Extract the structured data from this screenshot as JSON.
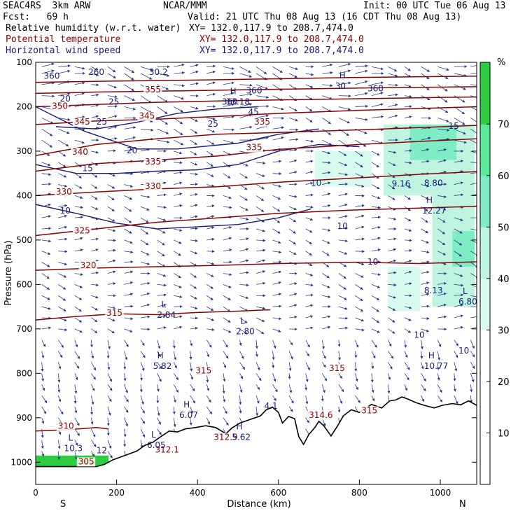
{
  "header": {
    "model": "SEAC4RS  3km ARW",
    "org": "NCAR/MMM",
    "init": "Init: 00 UTC Tue 06 Aug 13",
    "fcst": "Fcst:   69 h",
    "valid": "Valid: 21 UTC Thu 08 Aug 13 (16 CDT Thu 08 Aug 13)",
    "field1_name": "Relative humidity (w.r.t. water)",
    "field1_xy": "XY= 132.0,117.9 to 208.7,474.0",
    "field2_name": "Potential temperature",
    "field2_xy": "XY= 132.0,117.9 to 208.7,474.0",
    "field3_name": "Horizontal wind speed",
    "field3_xy": "XY= 132.0,117.9 to 208.7,474.0"
  },
  "colors": {
    "theta": "#8b0000",
    "wind": "#1a1a7a",
    "vector": "#2a3a8a",
    "field1_label": "#000000",
    "field2_label": "#8b0000",
    "field3_label": "#1a1a7a",
    "terrain": "#000000"
  },
  "chart_data": {
    "type": "heatmap",
    "xlabel": "Distance (km)",
    "ylabel": "Pressure (hPa)",
    "xlim": [
      0,
      1090
    ],
    "ylim": [
      1050,
      100
    ],
    "x_ticks": [
      0,
      200,
      400,
      600,
      800,
      1000
    ],
    "y_ticks": [
      1000,
      900,
      800,
      700,
      600,
      500,
      400,
      300,
      200,
      100
    ],
    "x_end_labels": {
      "left": "S",
      "right": "N"
    },
    "colorbar": {
      "unit": "%",
      "ticks": [
        10,
        20,
        30,
        40,
        50,
        60,
        70
      ],
      "range": [
        0,
        82
      ],
      "stops": [
        {
          "v": 0,
          "c": "#ffffff"
        },
        {
          "v": 30,
          "c": "#ffffff"
        },
        {
          "v": 30,
          "c": "#d9fbef"
        },
        {
          "v": 40,
          "c": "#bff5e0"
        },
        {
          "v": 50,
          "c": "#7eedc6"
        },
        {
          "v": 60,
          "c": "#5ce89a"
        },
        {
          "v": 70,
          "c": "#2ecc40"
        },
        {
          "v": 82,
          "c": "#22bb22"
        }
      ]
    },
    "terrain": [
      [
        0,
        1010
      ],
      [
        150,
        1010
      ],
      [
        170,
        1005
      ],
      [
        190,
        995
      ],
      [
        220,
        985
      ],
      [
        250,
        975
      ],
      [
        270,
        962
      ],
      [
        290,
        955
      ],
      [
        310,
        942
      ],
      [
        330,
        930
      ],
      [
        350,
        932
      ],
      [
        370,
        925
      ],
      [
        395,
        922
      ],
      [
        420,
        918
      ],
      [
        445,
        922
      ],
      [
        470,
        936
      ],
      [
        485,
        923
      ],
      [
        505,
        912
      ],
      [
        530,
        904
      ],
      [
        555,
        896
      ],
      [
        570,
        882
      ],
      [
        585,
        876
      ],
      [
        600,
        888
      ],
      [
        610,
        912
      ],
      [
        625,
        897
      ],
      [
        640,
        902
      ],
      [
        650,
        942
      ],
      [
        662,
        960
      ],
      [
        675,
        938
      ],
      [
        690,
        922
      ],
      [
        700,
        908
      ],
      [
        712,
        918
      ],
      [
        730,
        941
      ],
      [
        745,
        920
      ],
      [
        760,
        896
      ],
      [
        780,
        882
      ],
      [
        800,
        888
      ],
      [
        830,
        870
      ],
      [
        855,
        878
      ],
      [
        875,
        862
      ],
      [
        890,
        860
      ],
      [
        905,
        853
      ],
      [
        920,
        858
      ],
      [
        940,
        866
      ],
      [
        960,
        872
      ],
      [
        985,
        878
      ],
      [
        1005,
        872
      ],
      [
        1030,
        868
      ],
      [
        1050,
        871
      ],
      [
        1070,
        862
      ],
      [
        1090,
        872
      ]
    ],
    "rh_patches": [
      {
        "x": [
          0,
          180
        ],
        "p": [
          985,
          1010
        ],
        "rh": 75
      },
      {
        "x": [
          860,
          1085
        ],
        "p": [
          240,
          400
        ],
        "rh": 40
      },
      {
        "x": [
          925,
          1040
        ],
        "p": [
          240,
          320
        ],
        "rh": 55
      },
      {
        "x": [
          980,
          1085
        ],
        "p": [
          400,
          650
        ],
        "rh": 45
      },
      {
        "x": [
          1030,
          1085
        ],
        "p": [
          480,
          560
        ],
        "rh": 52
      },
      {
        "x": [
          870,
          950
        ],
        "p": [
          560,
          660
        ],
        "rh": 35
      },
      {
        "x": [
          690,
          830
        ],
        "p": [
          300,
          380
        ],
        "rh": 33
      }
    ],
    "theta_contours": [
      {
        "level": 310,
        "points": [
          [
            0,
            930
          ],
          [
            80,
            927
          ],
          [
            150,
            922
          ],
          [
            180,
            925
          ]
        ]
      },
      {
        "level": 315,
        "points": [
          [
            0,
            680
          ],
          [
            100,
            672
          ],
          [
            200,
            666
          ],
          [
            300,
            668
          ],
          [
            400,
            663
          ],
          [
            500,
            660
          ],
          [
            580,
            657
          ]
        ]
      },
      {
        "level": 320,
        "points": [
          [
            0,
            568
          ],
          [
            150,
            563
          ],
          [
            300,
            560
          ],
          [
            450,
            557
          ],
          [
            600,
            553
          ],
          [
            800,
            550
          ],
          [
            950,
            553
          ],
          [
            1090,
            549
          ]
        ]
      },
      {
        "level": 325,
        "points": [
          [
            0,
            490
          ],
          [
            150,
            475
          ],
          [
            300,
            460
          ],
          [
            450,
            450
          ],
          [
            600,
            440
          ],
          [
            800,
            432
          ],
          [
            950,
            428
          ],
          [
            1090,
            424
          ]
        ]
      },
      {
        "level": 330,
        "points": [
          [
            0,
            400
          ],
          [
            150,
            392
          ],
          [
            300,
            385
          ],
          [
            450,
            380
          ],
          [
            600,
            370
          ],
          [
            800,
            360
          ],
          [
            950,
            352
          ],
          [
            1090,
            346
          ]
        ]
      },
      {
        "level": 335,
        "points": [
          [
            0,
            345
          ],
          [
            150,
            328
          ],
          [
            300,
            320
          ],
          [
            450,
            311
          ],
          [
            600,
            296
          ],
          [
            800,
            285
          ],
          [
            950,
            278
          ],
          [
            1090,
            272
          ]
        ]
      },
      {
        "level": 340,
        "points": [
          [
            0,
            310
          ],
          [
            150,
            285
          ],
          [
            300,
            272
          ],
          [
            450,
            262
          ],
          [
            600,
            258
          ],
          [
            800,
            252
          ],
          [
            1090,
            242
          ]
        ]
      },
      {
        "level": 345,
        "points": [
          [
            0,
            240
          ],
          [
            150,
            232
          ],
          [
            300,
            228
          ],
          [
            450,
            222
          ],
          [
            600,
            215
          ],
          [
            800,
            208
          ],
          [
            1090,
            200
          ]
        ]
      },
      {
        "level": 350,
        "points": [
          [
            0,
            200
          ],
          [
            150,
            195
          ],
          [
            300,
            190
          ],
          [
            500,
            186
          ],
          [
            800,
            182
          ],
          [
            1090,
            178
          ]
        ]
      },
      {
        "level": 355,
        "points": [
          [
            0,
            170
          ],
          [
            150,
            167
          ],
          [
            300,
            165
          ],
          [
            500,
            162
          ],
          [
            800,
            158
          ],
          [
            1090,
            155
          ]
        ]
      },
      {
        "level": 360,
        "points": [
          [
            0,
            145
          ],
          [
            200,
            142
          ],
          [
            400,
            140
          ],
          [
            600,
            137
          ],
          [
            800,
            134
          ],
          [
            1090,
            131
          ]
        ]
      }
    ],
    "theta_labels": [
      {
        "x": 55,
        "p": 925,
        "text": "310"
      },
      {
        "x": 105,
        "p": 1005,
        "text": "305"
      },
      {
        "x": 175,
        "p": 670,
        "text": "315"
      },
      {
        "x": 110,
        "p": 563,
        "text": "320"
      },
      {
        "x": 95,
        "p": 485,
        "text": "325"
      },
      {
        "x": 50,
        "p": 398,
        "text": "330"
      },
      {
        "x": 270,
        "p": 385,
        "text": "330"
      },
      {
        "x": 90,
        "p": 308,
        "text": "340"
      },
      {
        "x": 270,
        "p": 330,
        "text": "335"
      },
      {
        "x": 520,
        "p": 298,
        "text": "335"
      },
      {
        "x": 95,
        "p": 240,
        "text": "345"
      },
      {
        "x": 255,
        "p": 227,
        "text": "345"
      },
      {
        "x": 40,
        "p": 205,
        "text": "350"
      },
      {
        "x": 270,
        "p": 168,
        "text": "355"
      },
      {
        "x": 540,
        "p": 240,
        "text": "335"
      },
      {
        "x": 395,
        "p": 800,
        "text": "315"
      },
      {
        "x": 725,
        "p": 795,
        "text": "315"
      },
      {
        "x": 805,
        "p": 890,
        "text": "315"
      },
      {
        "x": 675,
        "p": 900,
        "text": "314.6"
      },
      {
        "x": 295,
        "p": 978,
        "text": "312.1"
      },
      {
        "x": 440,
        "p": 950,
        "text": "312.9"
      }
    ],
    "wind_contours": [
      {
        "level": 10,
        "points": [
          [
            0,
            420
          ],
          [
            100,
            440
          ],
          [
            200,
            462
          ],
          [
            300,
            475
          ],
          [
            400,
            470
          ],
          [
            500,
            465
          ],
          [
            600,
            450
          ],
          [
            680,
            430
          ]
        ]
      },
      {
        "level": 15,
        "points": [
          [
            0,
            330
          ],
          [
            100,
            350
          ],
          [
            200,
            350
          ],
          [
            300,
            345
          ],
          [
            400,
            342
          ],
          [
            500,
            330
          ],
          [
            600,
            300
          ],
          [
            700,
            285
          ],
          [
            800,
            290
          ]
        ]
      },
      {
        "level": 20,
        "points": [
          [
            0,
            200
          ],
          [
            120,
            255
          ],
          [
            250,
            295
          ],
          [
            350,
            295
          ],
          [
            500,
            282
          ],
          [
            600,
            262
          ],
          [
            700,
            250
          ]
        ]
      },
      {
        "level": 25,
        "points": [
          [
            50,
            245
          ],
          [
            150,
            250
          ],
          [
            250,
            235
          ],
          [
            350,
            215
          ],
          [
            450,
            205
          ],
          [
            550,
            200
          ]
        ]
      }
    ],
    "wind_labels": [
      {
        "x": 60,
        "p": 440,
        "text": "10"
      },
      {
        "x": 680,
        "p": 378,
        "text": "10"
      },
      {
        "x": 745,
        "p": 475,
        "text": "10"
      },
      {
        "x": 820,
        "p": 555,
        "text": "10"
      },
      {
        "x": 935,
        "p": 720,
        "text": "10"
      },
      {
        "x": 1045,
        "p": 755,
        "text": "10"
      },
      {
        "x": 115,
        "p": 345,
        "text": "15"
      },
      {
        "x": 1020,
        "p": 250,
        "text": "15"
      },
      {
        "x": 225,
        "p": 305,
        "text": "20"
      },
      {
        "x": 60,
        "p": 188,
        "text": "20"
      },
      {
        "x": 180,
        "p": 195,
        "text": "25"
      },
      {
        "x": 150,
        "p": 240,
        "text": "25"
      },
      {
        "x": 425,
        "p": 245,
        "text": "25"
      },
      {
        "x": 525,
        "p": 218,
        "text": "45"
      },
      {
        "x": 280,
        "p": 128,
        "text": "30.2"
      },
      {
        "x": 130,
        "p": 128,
        "text": "260"
      },
      {
        "x": 20,
        "p": 137,
        "text": "360"
      },
      {
        "x": 520,
        "p": 170,
        "text": "360"
      },
      {
        "x": 460,
        "p": 195,
        "text": "360"
      },
      {
        "x": 820,
        "p": 165,
        "text": "360"
      }
    ],
    "extrema_labels": [
      {
        "x": 70,
        "p": 975,
        "mark": "L",
        "value": "10.3"
      },
      {
        "x": 150,
        "p": 980,
        "mark": "",
        "value": "12"
      },
      {
        "x": 275,
        "p": 968,
        "mark": "L",
        "value": "6.05"
      },
      {
        "x": 300,
        "p": 675,
        "mark": "L",
        "value": "2.84"
      },
      {
        "x": 495,
        "p": 712,
        "mark": "L",
        "value": "2.80"
      },
      {
        "x": 290,
        "p": 790,
        "mark": "H",
        "value": "5.82"
      },
      {
        "x": 355,
        "p": 900,
        "mark": "H",
        "value": "6.07"
      },
      {
        "x": 485,
        "p": 950,
        "mark": "H",
        "value": "5.62"
      },
      {
        "x": 565,
        "p": 880,
        "mark": "",
        "value": "4.1"
      },
      {
        "x": 880,
        "p": 380,
        "mark": "",
        "value": "9.16"
      },
      {
        "x": 960,
        "p": 378,
        "mark": "",
        "value": "8.80"
      },
      {
        "x": 955,
        "p": 440,
        "mark": "H",
        "value": "12.27"
      },
      {
        "x": 960,
        "p": 620,
        "mark": "",
        "value": "8.13"
      },
      {
        "x": 1045,
        "p": 645,
        "mark": "L",
        "value": "6.80"
      },
      {
        "x": 960,
        "p": 790,
        "mark": "H",
        "value": "10.77"
      },
      {
        "x": 470,
        "p": 195,
        "mark": "H",
        "value": "33.18"
      },
      {
        "x": 740,
        "p": 160,
        "mark": "H",
        "value": "30"
      }
    ],
    "wind_vectors": {
      "columns": 27,
      "levels": [
        975,
        950,
        925,
        900,
        875,
        850,
        825,
        800,
        775,
        750,
        725,
        700,
        675,
        650,
        625,
        600,
        575,
        550,
        525,
        500,
        475,
        450,
        425,
        400,
        375,
        350,
        325,
        300,
        275,
        250,
        225,
        200,
        175,
        150,
        125,
        110
      ],
      "note": "direction and length vary smoothly with height; downward-oriented below 700 hPa, south-to-north flow aloft"
    }
  }
}
